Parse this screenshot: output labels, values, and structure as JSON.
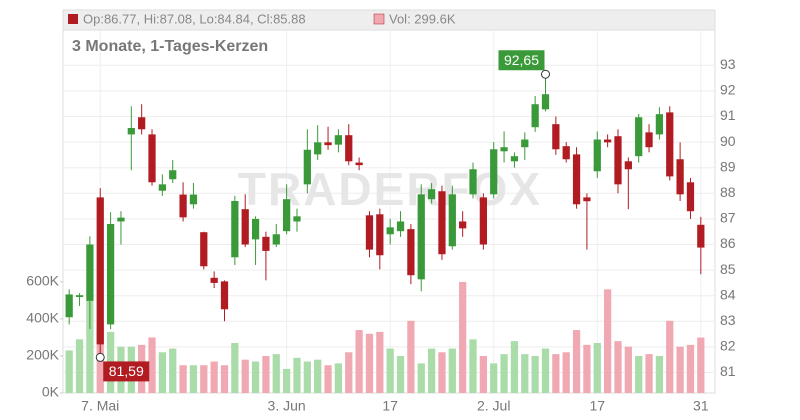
{
  "chart_data": {
    "type": "candlestick",
    "title": "3 Monate, 1-Tages-Kerzen",
    "ohlc_label": "Op:86.77, Hi:87.08, Lo:84.84, Cl:85.88",
    "volume_label": "Vol: 299.6K",
    "watermark": "TRADERFOX",
    "categories": [
      null,
      null,
      null,
      "7. Mai",
      null,
      null,
      null,
      null,
      null,
      null,
      null,
      null,
      null,
      null,
      null,
      null,
      null,
      null,
      null,
      null,
      null,
      "3. Jun",
      null,
      null,
      null,
      null,
      null,
      null,
      null,
      null,
      null,
      "17",
      null,
      null,
      null,
      null,
      null,
      null,
      null,
      null,
      null,
      "2. Jul",
      null,
      null,
      null,
      null,
      null,
      null,
      null,
      null,
      null,
      "17",
      null,
      null,
      null,
      null,
      null,
      null,
      null,
      null,
      null,
      "31"
    ],
    "open": [
      83.16,
      83.95,
      83.8,
      87.84,
      82.88,
      86.9,
      90.3,
      90.97,
      90.3,
      88.1,
      88.55,
      87.95,
      87.57,
      86.48,
      84.7,
      84.56,
      85.5,
      87.38,
      86.2,
      86.3,
      86.0,
      86.52,
      86.9,
      88.35,
      89.52,
      89.99,
      89.9,
      90.27,
      89.2,
      87.14,
      87.18,
      86.4,
      86.52,
      86.6,
      84.64,
      87.77,
      88.08,
      85.93,
      86.9,
      87.96,
      87.84,
      87.96,
      89.64,
      89.25,
      89.8,
      90.58,
      91.28,
      90.7,
      89.84,
      89.52,
      87.84,
      88.86,
      90.1,
      90.23,
      89.25,
      89.45,
      90.38,
      90.3,
      91.16,
      89.33,
      88.43,
      86.77
    ],
    "high": [
      84.25,
      84.1,
      86.32,
      88.2,
      87.26,
      87.3,
      91.4,
      91.48,
      90.5,
      88.74,
      89.3,
      88.43,
      88.4,
      86.5,
      84.95,
      84.6,
      87.9,
      87.96,
      87.1,
      86.5,
      86.8,
      88.35,
      87.4,
      90.5,
      90.66,
      90.6,
      90.5,
      90.7,
      89.4,
      87.3,
      87.4,
      87.0,
      87.3,
      86.8,
      88.35,
      88.4,
      88.3,
      88.3,
      87.3,
      89.2,
      88.0,
      90.0,
      90.42,
      89.6,
      90.38,
      91.8,
      92.65,
      91.0,
      90.0,
      89.8,
      88.0,
      90.42,
      90.3,
      90.5,
      89.4,
      91.1,
      90.7,
      91.36,
      91.4,
      89.99,
      88.6,
      87.08
    ],
    "low": [
      82.88,
      83.6,
      82.7,
      81.59,
      82.7,
      86.0,
      88.9,
      90.3,
      88.3,
      87.9,
      88.4,
      86.9,
      87.4,
      85.03,
      84.3,
      83.0,
      85.2,
      85.9,
      85.2,
      84.6,
      85.9,
      86.4,
      86.5,
      88.0,
      89.3,
      89.7,
      89.6,
      89.1,
      88.9,
      85.5,
      85.03,
      86.0,
      86.3,
      84.45,
      84.17,
      87.6,
      85.4,
      85.8,
      86.3,
      87.8,
      85.8,
      87.8,
      89.2,
      89.0,
      89.3,
      90.4,
      91.2,
      89.5,
      89.2,
      87.4,
      85.8,
      88.6,
      89.8,
      88.0,
      87.38,
      89.2,
      89.6,
      90.1,
      88.5,
      87.7,
      87.0,
      84.84
    ],
    "close": [
      84.05,
      84.02,
      86.0,
      82.1,
      86.8,
      87.05,
      90.55,
      90.5,
      88.43,
      88.35,
      88.9,
      87.06,
      87.95,
      85.15,
      84.5,
      83.47,
      87.7,
      86.0,
      87.0,
      85.75,
      86.4,
      87.77,
      87.1,
      89.7,
      89.99,
      89.88,
      90.27,
      89.25,
      89.1,
      85.8,
      85.58,
      86.67,
      86.9,
      84.8,
      87.96,
      88.16,
      85.62,
      87.96,
      86.63,
      88.94,
      86.0,
      89.72,
      89.8,
      89.45,
      90.1,
      91.48,
      91.87,
      89.72,
      89.33,
      87.57,
      87.69,
      90.1,
      89.99,
      88.35,
      88.94,
      90.97,
      89.8,
      91.09,
      88.66,
      87.96,
      87.3,
      85.88
    ],
    "volume": [
      230000,
      290000,
      500000,
      380000,
      330000,
      250000,
      250000,
      260000,
      300000,
      220000,
      240000,
      150000,
      150000,
      150000,
      170000,
      150000,
      270000,
      180000,
      170000,
      200000,
      210000,
      130000,
      190000,
      170000,
      180000,
      150000,
      160000,
      220000,
      340000,
      320000,
      330000,
      240000,
      200000,
      390000,
      160000,
      240000,
      220000,
      240000,
      600000,
      290000,
      200000,
      160000,
      210000,
      280000,
      210000,
      200000,
      240000,
      210000,
      220000,
      340000,
      260000,
      270000,
      560000,
      280000,
      250000,
      200000,
      210000,
      200000,
      390000,
      250000,
      260000,
      299600
    ],
    "up_color": "#3a9a3a",
    "down_color": "#b01c22",
    "volume_up_color": "#a9dca9",
    "volume_down_color": "#f0a9b2",
    "ylim": [
      80.2,
      94.3
    ],
    "yticks": [
      81,
      82,
      83,
      84,
      85,
      86,
      87,
      88,
      89,
      90,
      91,
      92,
      93
    ],
    "y2lim": [
      0,
      1950000
    ],
    "y2ticks": [
      {
        "value": 0,
        "label": "0K"
      },
      {
        "value": 200000,
        "label": "200K"
      },
      {
        "value": 400000,
        "label": "400K"
      },
      {
        "value": 600000,
        "label": "600K"
      }
    ],
    "grid": true,
    "annotations": [
      {
        "label": "92,65",
        "value": 92.65
      },
      {
        "label": "81,59",
        "value": 81.59
      }
    ]
  }
}
